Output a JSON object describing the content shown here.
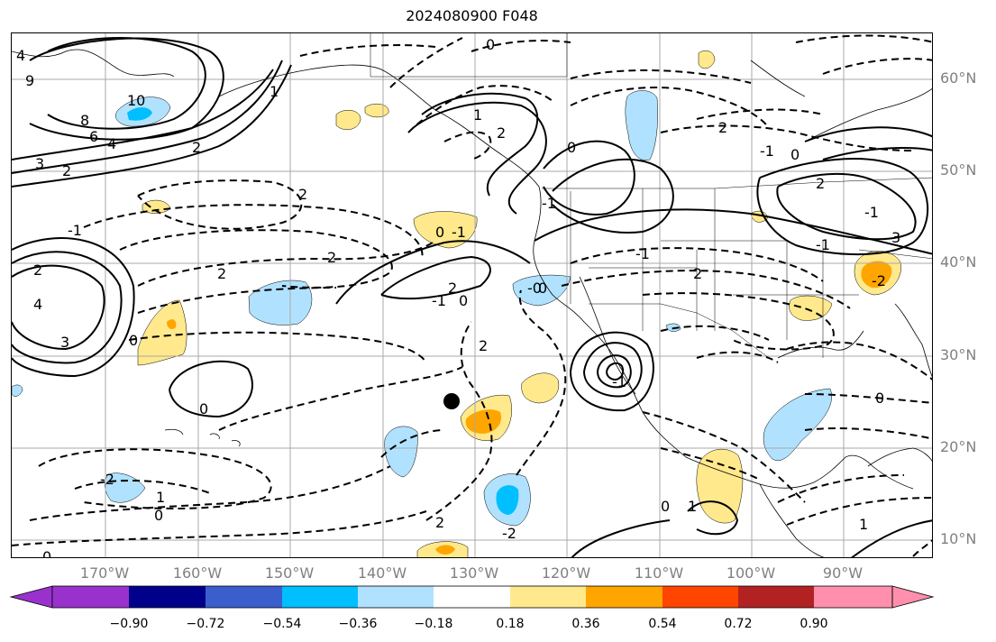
{
  "title": "2024080900 F048",
  "lat_labels": [
    "60°N",
    "50°N",
    "40°N",
    "30°N",
    "20°N",
    "10°N"
  ],
  "lon_labels": [
    "170°W",
    "160°W",
    "150°W",
    "140°W",
    "130°W",
    "120°W",
    "110°W",
    "100°W",
    "90°W"
  ],
  "colorbar": {
    "tick_labels": [
      "−0.90",
      "−0.72",
      "−0.54",
      "−0.36",
      "−0.18",
      "0.18",
      "0.36",
      "0.54",
      "0.72",
      "0.90"
    ],
    "colors": [
      "#9932cc",
      "#00008b",
      "#3a5fcd",
      "#00bfff",
      "#b0e2ff",
      "#ffffff",
      "#ffe98c",
      "#ffa500",
      "#ff4500",
      "#b22222",
      "#ff8fad"
    ]
  },
  "contour_labels": [
    "4",
    "9",
    "10",
    "8",
    "6",
    "4",
    "3",
    "2",
    "2",
    "1",
    "-1",
    "2",
    "4",
    "3",
    "0",
    "2",
    "1",
    "2",
    "0",
    "-1",
    "2",
    "0",
    "-1",
    "2",
    "0",
    "2",
    "-2",
    "1",
    "2",
    "0",
    "2",
    "-2",
    "-1",
    "-1",
    "2",
    "-1",
    "-1",
    "3",
    "2",
    "0",
    "0",
    "0",
    "2",
    "0",
    "-2",
    "-1",
    "0",
    "1",
    "0",
    "0",
    "-0",
    "1",
    "-1"
  ],
  "marker": "black-dot"
}
